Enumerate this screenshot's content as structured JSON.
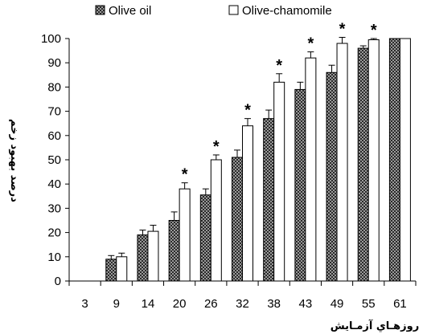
{
  "chart_data": {
    "type": "bar",
    "categories": [
      "3",
      "9",
      "14",
      "20",
      "26",
      "32",
      "38",
      "43",
      "49",
      "55",
      "61"
    ],
    "series": [
      {
        "name": "Olive oil",
        "values": [
          0,
          9,
          19,
          25,
          35.5,
          51,
          67,
          79,
          86,
          96,
          100
        ],
        "errors": [
          0,
          1.5,
          2,
          3.5,
          2.5,
          3,
          3.5,
          3,
          3,
          1,
          0
        ],
        "fill": "#555555",
        "pattern": "checker"
      },
      {
        "name": "Olive-chamomile",
        "values": [
          0,
          10,
          20.5,
          38,
          50,
          64,
          82,
          92,
          98,
          99.5,
          100
        ],
        "errors": [
          0,
          1.5,
          2.5,
          2.5,
          2,
          3,
          3.5,
          2.5,
          2.5,
          0.5,
          0
        ],
        "fill": "#ffffff",
        "pattern": "none"
      }
    ],
    "significant": [
      false,
      false,
      false,
      true,
      true,
      true,
      true,
      true,
      true,
      true,
      false
    ],
    "significance_marker": "*",
    "ylim": [
      0,
      100
    ],
    "yticks": [
      0,
      10,
      20,
      30,
      40,
      50,
      60,
      70,
      80,
      90,
      100
    ],
    "xlabel": "روزهـاي آزمـايش",
    "ylabel": "درصد بهبود زخم",
    "legend_position": "top",
    "grid": false
  }
}
